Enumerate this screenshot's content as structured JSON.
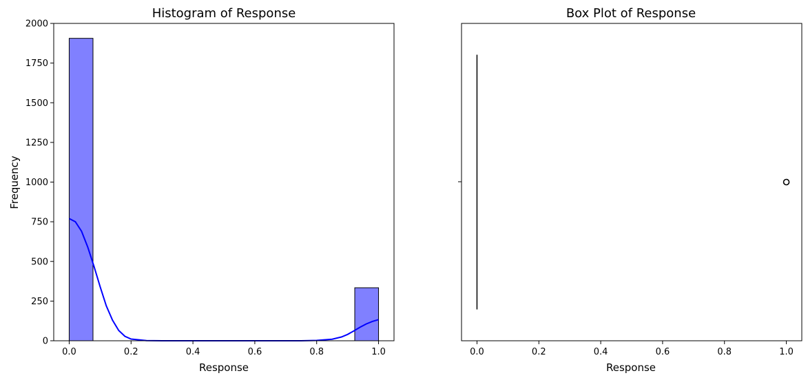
{
  "chart_data": [
    {
      "type": "bar",
      "subtype": "histogram",
      "title": "Histogram of Response",
      "xlabel": "Response",
      "ylabel": "Frequency",
      "xlim": [
        -0.05,
        1.05
      ],
      "ylim": [
        0,
        2000
      ],
      "xticks": [
        "0.0",
        "0.2",
        "0.4",
        "0.6",
        "0.8",
        "1.0"
      ],
      "yticks": [
        "0",
        "250",
        "500",
        "750",
        "1000",
        "1250",
        "1500",
        "1750",
        "2000"
      ],
      "bins": [
        {
          "x0": 0.0,
          "x1": 0.0769,
          "count": 1906
        },
        {
          "x0": 0.9231,
          "x1": 1.0,
          "count": 334
        }
      ],
      "bar_color": "#8080ff",
      "bar_edge_color": "#000000",
      "kde": {
        "color": "#0000ff",
        "points": [
          [
            0.0,
            770
          ],
          [
            0.02,
            750
          ],
          [
            0.04,
            690
          ],
          [
            0.06,
            590
          ],
          [
            0.08,
            470
          ],
          [
            0.1,
            340
          ],
          [
            0.12,
            220
          ],
          [
            0.14,
            130
          ],
          [
            0.16,
            65
          ],
          [
            0.18,
            28
          ],
          [
            0.2,
            11
          ],
          [
            0.25,
            1
          ],
          [
            0.3,
            0
          ],
          [
            0.6,
            0
          ],
          [
            0.75,
            0
          ],
          [
            0.8,
            2
          ],
          [
            0.85,
            10
          ],
          [
            0.88,
            24
          ],
          [
            0.9,
            40
          ],
          [
            0.92,
            62
          ],
          [
            0.94,
            85
          ],
          [
            0.96,
            106
          ],
          [
            0.98,
            122
          ],
          [
            1.0,
            133
          ]
        ]
      }
    },
    {
      "type": "box",
      "title": "Box Plot of Response",
      "xlabel": "Response",
      "xlim": [
        -0.05,
        1.05
      ],
      "xticks": [
        "0.0",
        "0.2",
        "0.4",
        "0.6",
        "0.8",
        "1.0"
      ],
      "box": {
        "q1": 0,
        "median": 0,
        "q3": 0,
        "whisker_low": 0,
        "whisker_high": 0
      },
      "outliers": [
        1.0
      ],
      "color": "#000000"
    }
  ]
}
